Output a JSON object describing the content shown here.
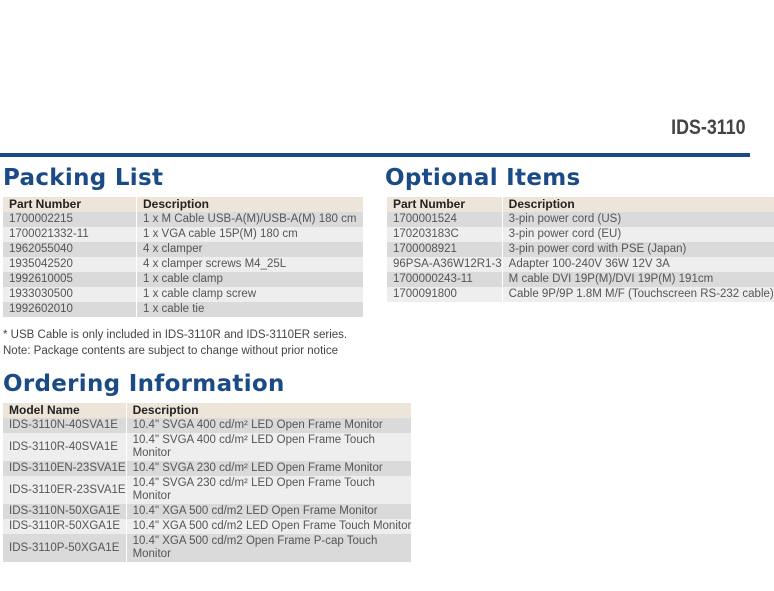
{
  "title": "IDS-3110",
  "packing": {
    "heading": "Packing List",
    "headers": [
      "Part Number",
      "Description"
    ],
    "rows": [
      [
        "1700002215",
        "1 x M Cable USB-A(M)/USB-A(M) 180 cm"
      ],
      [
        "1700021332-11",
        "1 x VGA cable 15P(M) 180 cm"
      ],
      [
        "1962055040",
        "4 x clamper"
      ],
      [
        "1935042520",
        "4 x clamper screws M4_25L"
      ],
      [
        "1992610005",
        "1 x cable clamp"
      ],
      [
        "1933030500",
        "1 x cable clamp screw"
      ],
      [
        "1992602010",
        "1 x cable tie"
      ]
    ],
    "notes": [
      "* USB Cable is only included in IDS-3110R and IDS-3110ER series.",
      "Note: Package contents are subject to change without prior notice"
    ]
  },
  "optional": {
    "heading": "Optional Items",
    "headers": [
      "Part Number",
      "Description"
    ],
    "rows": [
      [
        "1700001524",
        "3-pin power cord (US)"
      ],
      [
        "170203183C",
        "3-pin power cord (EU)"
      ],
      [
        "1700008921",
        "3-pin power cord with PSE (Japan)"
      ],
      [
        "96PSA-A36W12R1-3",
        "Adapter 100-240V 36W 12V 3A"
      ],
      [
        "1700000243-11",
        " M cable DVI 19P(M)/DVI 19P(M) 191cm"
      ],
      [
        "1700091800",
        "Cable 9P/9P 1.8M M/F (Touchscreen RS-232 cable)"
      ]
    ]
  },
  "ordering": {
    "heading": "Ordering Information",
    "headers": [
      "Model Name",
      "Description"
    ],
    "rows": [
      [
        "IDS-3110N-40SVA1E",
        "10.4\" SVGA 400 cd/m² LED Open Frame Monitor"
      ],
      [
        "IDS-3110R-40SVA1E",
        "10.4\" SVGA 400 cd/m² LED Open Frame Touch Monitor"
      ],
      [
        "IDS-3110EN-23SVA1E",
        "10.4\" SVGA 230 cd/m² LED Open Frame Monitor"
      ],
      [
        "IDS-3110ER-23SVA1E",
        "10.4\" SVGA 230 cd/m² LED Open Frame Touch Monitor"
      ],
      [
        "IDS-3110N-50XGA1E",
        "10.4\" XGA 500 cd/m2 LED Open Frame Monitor"
      ],
      [
        "IDS-3110R-50XGA1E",
        "10.4\" XGA 500 cd/m2 LED Open Frame Touch Monitor"
      ],
      [
        "IDS-3110P-50XGA1E",
        "10.4\" XGA 500 cd/m2  Open Frame P-cap Touch Monitor"
      ]
    ]
  }
}
